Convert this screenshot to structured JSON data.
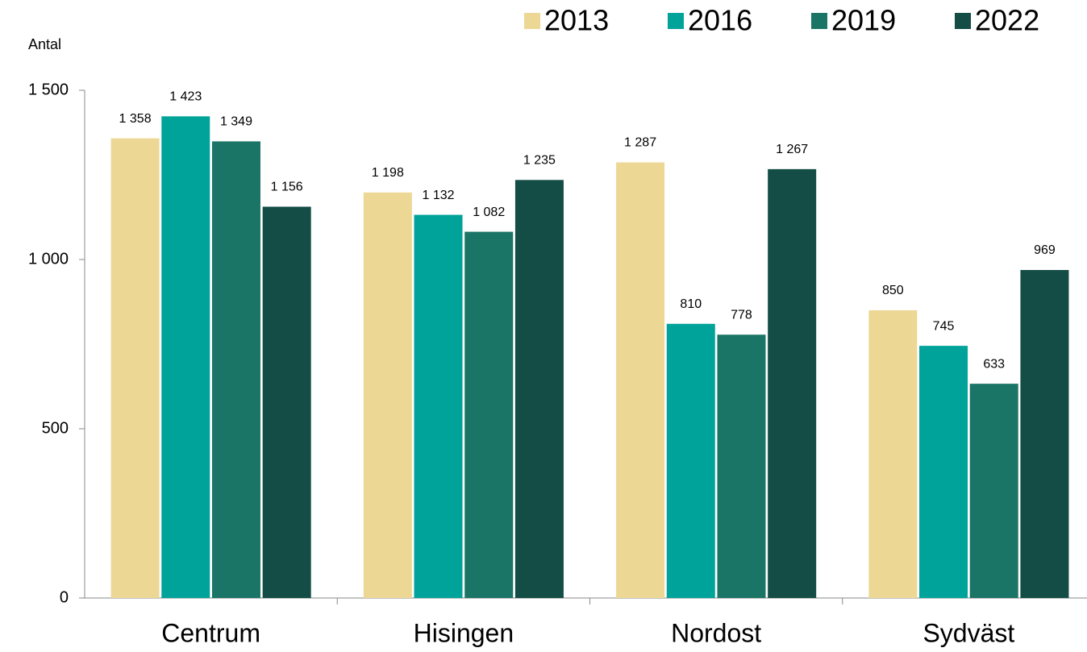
{
  "chart_data": {
    "type": "bar",
    "y_axis_label": "Antal",
    "categories": [
      "Centrum",
      "Hisingen",
      "Nordost",
      "Sydväst"
    ],
    "series": [
      {
        "name": "2013",
        "color": "#edd795",
        "values": [
          1358,
          1198,
          1287,
          850
        ],
        "value_labels": [
          "1 358",
          "1 198",
          "1 287",
          "850"
        ]
      },
      {
        "name": "2016",
        "color": "#00a39a",
        "values": [
          1423,
          1132,
          810,
          745
        ],
        "value_labels": [
          "1 423",
          "1 132",
          "810",
          "745"
        ]
      },
      {
        "name": "2019",
        "color": "#1b7566",
        "values": [
          1349,
          1082,
          778,
          633
        ],
        "value_labels": [
          "1 349",
          "1 082",
          "778",
          "633"
        ]
      },
      {
        "name": "2022",
        "color": "#134d45",
        "values": [
          1156,
          1235,
          1267,
          969
        ],
        "value_labels": [
          "1 156",
          "1 235",
          "1 267",
          "969"
        ]
      }
    ],
    "ylim": [
      0,
      1500
    ],
    "yticks": [
      0,
      500,
      {
        "value": 1000,
        "label": "1 000"
      },
      {
        "value": 1500,
        "label": "1 500"
      }
    ],
    "legend": "top-right"
  }
}
